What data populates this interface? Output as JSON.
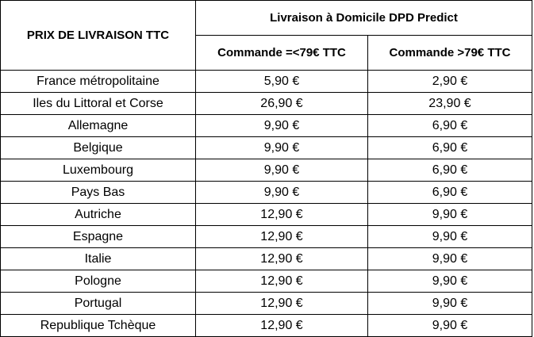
{
  "table": {
    "corner_header": "PRIX DE LIVRAISON TTC",
    "group_header": "Livraison à Domicile DPD Predict",
    "col_headers": [
      "Commande =<79€ TTC",
      "Commande >79€ TTC"
    ],
    "rows": [
      {
        "country": "France métropolitaine",
        "under": "5,90 €",
        "over": "2,90 €"
      },
      {
        "country": "Iles du Littoral et Corse",
        "under": "26,90 €",
        "over": "23,90 €"
      },
      {
        "country": "Allemagne",
        "under": "9,90 €",
        "over": "6,90 €"
      },
      {
        "country": "Belgique",
        "under": "9,90 €",
        "over": "6,90 €"
      },
      {
        "country": "Luxembourg",
        "under": "9,90 €",
        "over": "6,90 €"
      },
      {
        "country": "Pays Bas",
        "under": "9,90 €",
        "over": "6,90 €"
      },
      {
        "country": "Autriche",
        "under": "12,90 €",
        "over": "9,90 €"
      },
      {
        "country": "Espagne",
        "under": "12,90 €",
        "over": "9,90 €"
      },
      {
        "country": "Italie",
        "under": "12,90 €",
        "over": "9,90 €"
      },
      {
        "country": "Pologne",
        "under": "12,90 €",
        "over": "9,90 €"
      },
      {
        "country": "Portugal",
        "under": "12,90 €",
        "over": "9,90 €"
      },
      {
        "country": "Republique Tchèque",
        "under": "12,90 €",
        "over": "9,90 €"
      }
    ]
  }
}
